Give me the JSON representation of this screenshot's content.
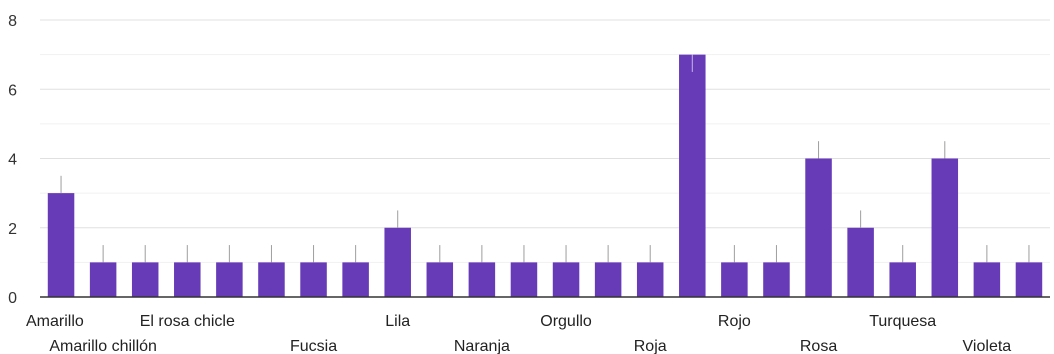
{
  "chart_data": {
    "type": "bar",
    "categories": [
      "Amarillo",
      "Amarillo chillón",
      "",
      "El rosa chicle",
      "",
      "",
      "Fucsia",
      "",
      "Lila",
      "",
      "Naranja",
      "",
      "Orgullo",
      "",
      "Roja",
      "",
      "Rojo",
      "",
      "Rosa",
      "",
      "Turquesa",
      "",
      "Violeta",
      ""
    ],
    "values": [
      3,
      1,
      1,
      1,
      1,
      1,
      1,
      1,
      2,
      1,
      1,
      1,
      1,
      1,
      1,
      7,
      1,
      1,
      4,
      2,
      1,
      4,
      1,
      1
    ],
    "y_ticks": [
      "0",
      "2",
      "4",
      "6",
      "8"
    ],
    "ylim": [
      0,
      8
    ],
    "bar_color": "#673ab7",
    "errorbar_color": "#9e9e9e",
    "grid": true,
    "legend": "none"
  }
}
